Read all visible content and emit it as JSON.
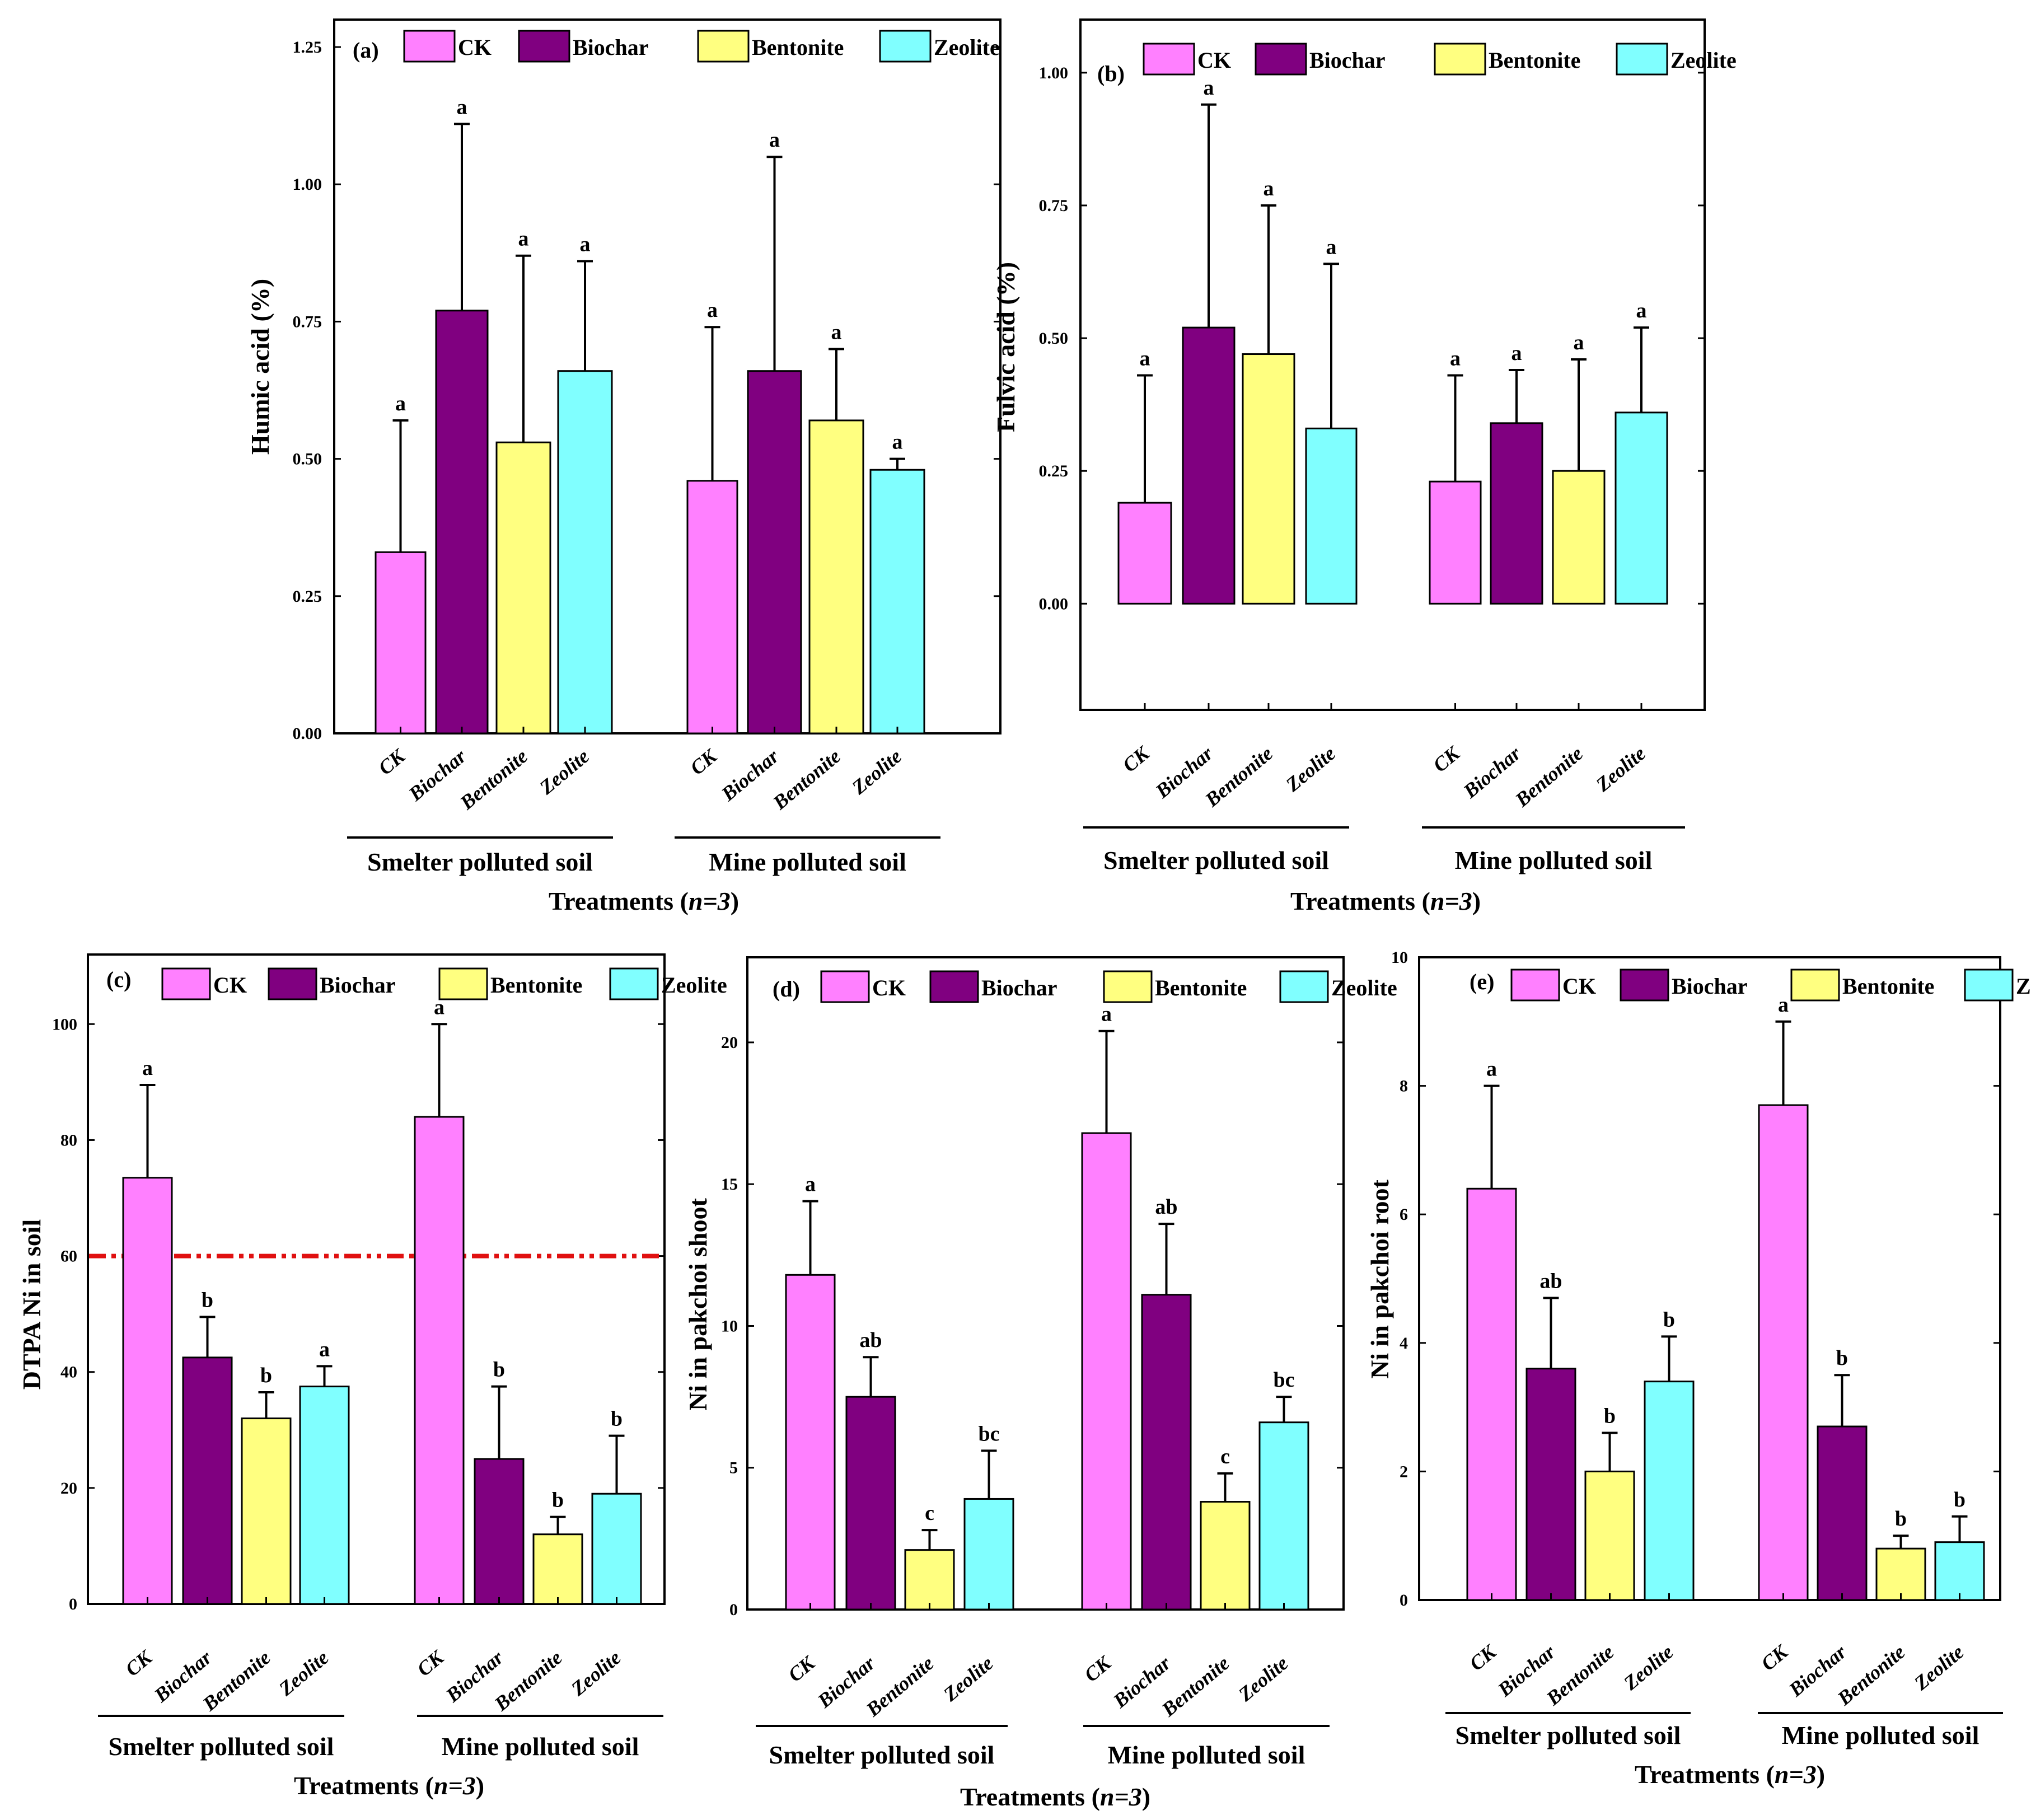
{
  "series_colors": {
    "CK": "#ff80ff",
    "Biochar": "#800080",
    "Bentonite": "#ffff80",
    "Zeolite": "#80ffff"
  },
  "threshold_color": "#e01010",
  "chart_data": [
    {
      "panel": "(a)",
      "type": "bar",
      "ylabel": "Humic acid (%)",
      "xlabel": "Treatments (n=3)",
      "ylim": [
        0,
        1.3
      ],
      "yticks": [
        0.0,
        0.25,
        0.5,
        0.75,
        1.0,
        1.25
      ],
      "ytick_labels": [
        "0.00",
        "0.25",
        "0.50",
        "0.75",
        "1.00",
        "1.25"
      ],
      "legend": [
        "CK",
        "Biochar",
        "Bentonite",
        "Zeolite"
      ],
      "categories": [
        "CK",
        "Biochar",
        "Bentonite",
        "Zeolite"
      ],
      "groups": [
        {
          "name": "Smelter polluted soil",
          "values": [
            0.33,
            0.77,
            0.53,
            0.66
          ],
          "errors": [
            0.24,
            0.34,
            0.34,
            0.2
          ],
          "letters": [
            "a",
            "a",
            "a",
            "a"
          ]
        },
        {
          "name": "Mine polluted soil",
          "values": [
            0.46,
            0.66,
            0.57,
            0.48
          ],
          "errors": [
            0.28,
            0.39,
            0.13,
            0.02
          ],
          "letters": [
            "a",
            "a",
            "a",
            "a"
          ]
        }
      ]
    },
    {
      "panel": "(b)",
      "type": "bar",
      "ylabel": "Fulvic acid (%)",
      "xlabel": "Treatments (n=3)",
      "ylim": [
        -0.2,
        1.1
      ],
      "yticks": [
        0.0,
        0.25,
        0.5,
        0.75,
        1.0
      ],
      "ytick_labels": [
        "0.00",
        "0.25",
        "0.50",
        "0.75",
        "1.00"
      ],
      "legend": [
        "CK",
        "Biochar",
        "Bentonite",
        "Zeolite"
      ],
      "categories": [
        "CK",
        "Biochar",
        "Bentonite",
        "Zeolite"
      ],
      "groups": [
        {
          "name": "Smelter polluted soil",
          "values": [
            0.19,
            0.52,
            0.47,
            0.33
          ],
          "errors": [
            0.24,
            0.42,
            0.28,
            0.31
          ],
          "letters": [
            "a",
            "a",
            "a",
            "a"
          ]
        },
        {
          "name": "Mine polluted soil",
          "values": [
            0.23,
            0.34,
            0.25,
            0.36
          ],
          "errors": [
            0.2,
            0.1,
            0.21,
            0.16
          ],
          "letters": [
            "a",
            "a",
            "a",
            "a"
          ]
        }
      ]
    },
    {
      "panel": "(c)",
      "type": "bar",
      "ylabel": "DTPA Ni in soil",
      "xlabel": "Treatments (n=3)",
      "ylim": [
        0,
        112
      ],
      "yticks": [
        0,
        20,
        40,
        60,
        80,
        100
      ],
      "ytick_labels": [
        "0",
        "20",
        "40",
        "60",
        "80",
        "100"
      ],
      "threshold": 60,
      "legend": [
        "CK",
        "Biochar",
        "Bentonite",
        "Zeolite"
      ],
      "categories": [
        "CK",
        "Biochar",
        "Bentonite",
        "Zeolite"
      ],
      "groups": [
        {
          "name": "Smelter polluted soil",
          "values": [
            73.5,
            42.5,
            32,
            37.5
          ],
          "errors": [
            16,
            7,
            4.5,
            3.5
          ],
          "letters": [
            "a",
            "b",
            "b",
            "a"
          ]
        },
        {
          "name": "Mine polluted soil",
          "values": [
            84,
            25,
            12,
            19
          ],
          "errors": [
            16,
            12.5,
            3,
            10
          ],
          "letters": [
            "a",
            "b",
            "b",
            "b"
          ]
        }
      ]
    },
    {
      "panel": "(d)",
      "type": "bar",
      "ylabel": "Ni in pakchoi shoot",
      "xlabel": "Treatments (n=3)",
      "ylim": [
        0,
        23
      ],
      "yticks": [
        0,
        5,
        10,
        15,
        20
      ],
      "ytick_labels": [
        "0",
        "5",
        "10",
        "15",
        "20"
      ],
      "legend": [
        "CK",
        "Biochar",
        "Bentonite",
        "Zeolite"
      ],
      "categories": [
        "CK",
        "Biochar",
        "Bentonite",
        "Zeolite"
      ],
      "groups": [
        {
          "name": "Smelter polluted soil",
          "values": [
            11.8,
            7.5,
            2.1,
            3.9
          ],
          "errors": [
            2.6,
            1.4,
            0.7,
            1.7
          ],
          "letters": [
            "a",
            "ab",
            "c",
            "bc"
          ]
        },
        {
          "name": "Mine polluted soil",
          "values": [
            16.8,
            11.1,
            3.8,
            6.6
          ],
          "errors": [
            3.6,
            2.5,
            1.0,
            0.9
          ],
          "letters": [
            "a",
            "ab",
            "c",
            "bc"
          ]
        }
      ]
    },
    {
      "panel": "(e)",
      "type": "bar",
      "ylabel": "Ni in pakchoi root",
      "xlabel": "Treatments (n=3)",
      "ylim": [
        0,
        10
      ],
      "yticks": [
        0,
        2,
        4,
        6,
        8,
        10
      ],
      "ytick_labels": [
        "0",
        "2",
        "4",
        "6",
        "8",
        "10"
      ],
      "legend": [
        "CK",
        "Biochar",
        "Bentonite",
        "Zeolite"
      ],
      "categories": [
        "CK",
        "Biochar",
        "Bentonite",
        "Zeolite"
      ],
      "groups": [
        {
          "name": "Smelter polluted soil",
          "values": [
            6.4,
            3.6,
            2.0,
            3.4
          ],
          "errors": [
            1.6,
            1.1,
            0.6,
            0.7
          ],
          "letters": [
            "a",
            "ab",
            "b",
            "b"
          ]
        },
        {
          "name": "Mine polluted soil",
          "values": [
            7.7,
            2.7,
            0.8,
            0.9
          ],
          "errors": [
            1.3,
            0.8,
            0.2,
            0.4
          ],
          "letters": [
            "a",
            "b",
            "b",
            "b"
          ]
        }
      ]
    }
  ]
}
